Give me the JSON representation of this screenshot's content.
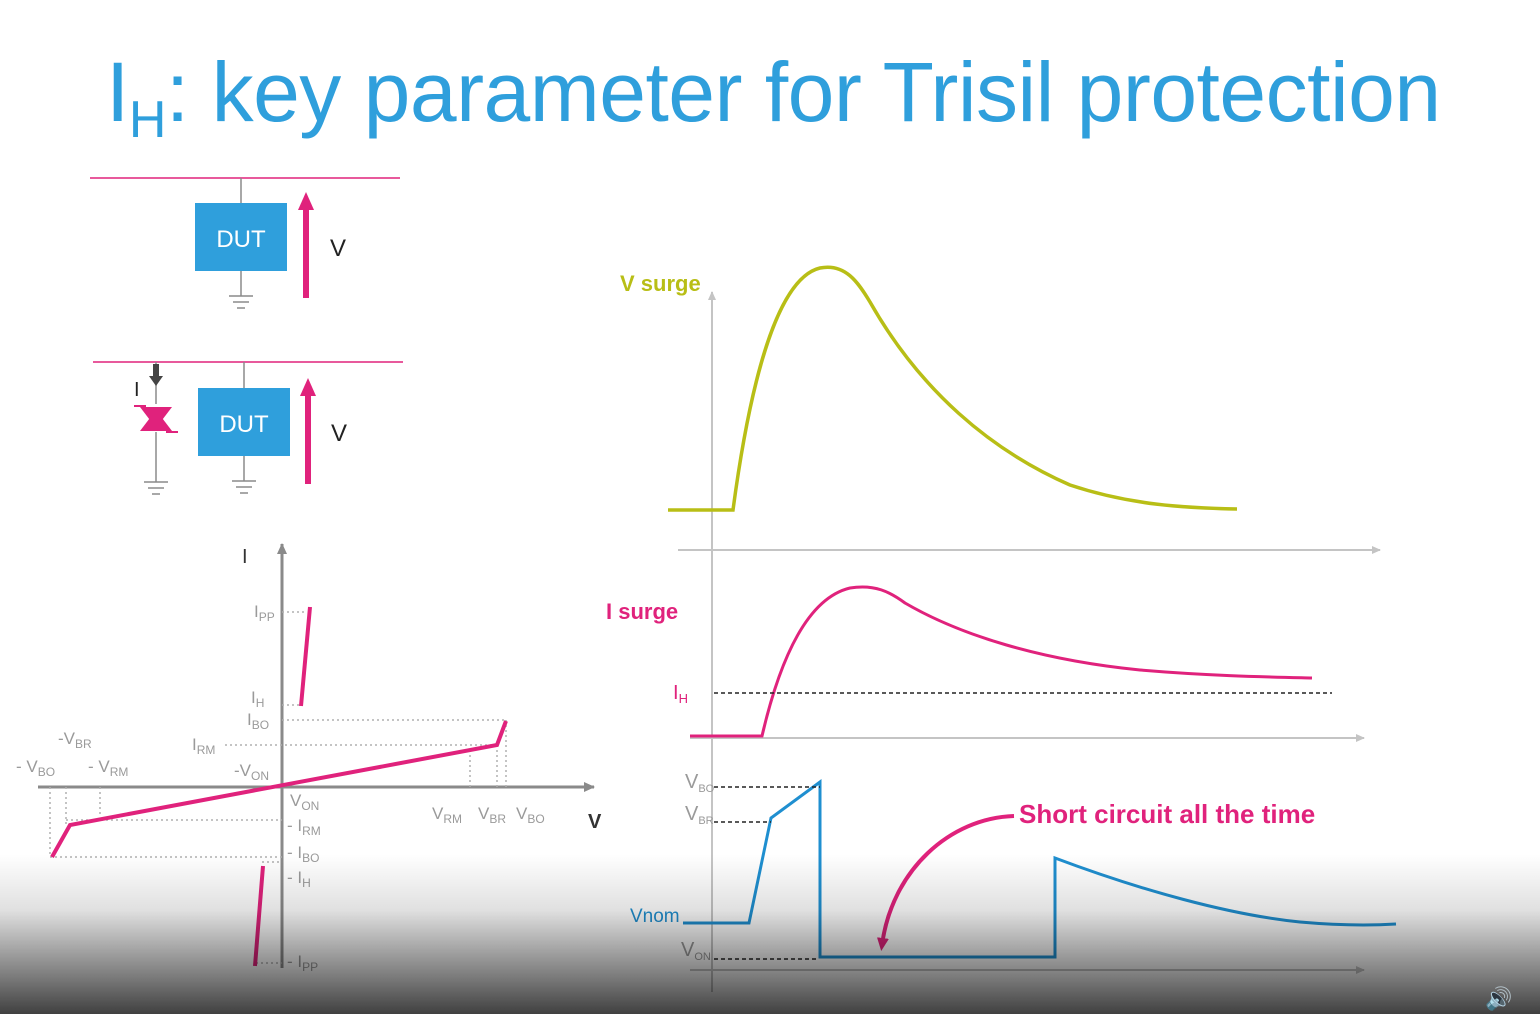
{
  "title": {
    "main": "I",
    "sub": "H",
    "rest": ": key parameter for Trisil protection"
  },
  "colors": {
    "title": "#2f9fdc",
    "magenta": "#e0227c",
    "blue": "#2f9fdc",
    "olive": "#b8be16",
    "gray": "#9a9a9a"
  },
  "circuit1": {
    "dut_label": "DUT",
    "v_label": "V"
  },
  "circuit2": {
    "dut_label": "DUT",
    "v_label": "V",
    "i_label": "I"
  },
  "iv_chart": {
    "y_axis_label": "I",
    "x_axis_label": "V",
    "labels": {
      "ipp": {
        "m": "I",
        "s": "PP"
      },
      "ih": {
        "m": "I",
        "s": "H"
      },
      "ibo": {
        "m": "I",
        "s": "BO"
      },
      "irm": {
        "m": "I",
        "s": "RM"
      },
      "neg_von": {
        "m": "-V",
        "s": "ON"
      },
      "neg_vbr": {
        "m": "-V",
        "s": "BR"
      },
      "neg_vbo": {
        "m": "- V",
        "s": "BO"
      },
      "neg_vrm": {
        "m": "- V",
        "s": "RM"
      },
      "von": {
        "m": "V",
        "s": "ON"
      },
      "neg_irm": {
        "m": "- I",
        "s": "RM"
      },
      "neg_ibo": {
        "m": "- I",
        "s": "BO"
      },
      "neg_ih": {
        "m": "- I",
        "s": "H"
      },
      "neg_ipp": {
        "m": "- I",
        "s": "PP"
      },
      "vrm": {
        "m": "V",
        "s": "RM"
      },
      "vbr": {
        "m": "V",
        "s": "BR"
      },
      "vbo": {
        "m": "V",
        "s": "BO"
      }
    }
  },
  "waveforms": {
    "v_surge_label": "V surge",
    "i_surge_label": "I surge",
    "ih": {
      "m": "I",
      "s": "H"
    },
    "vbo": {
      "m": "V",
      "s": "BO"
    },
    "vbr": {
      "m": "V",
      "s": "BR"
    },
    "vnom_label": "Vnom",
    "von": {
      "m": "V",
      "s": "ON"
    },
    "annotation": "Short circuit all the time"
  },
  "player": {
    "volume_icon": "speaker-icon"
  }
}
